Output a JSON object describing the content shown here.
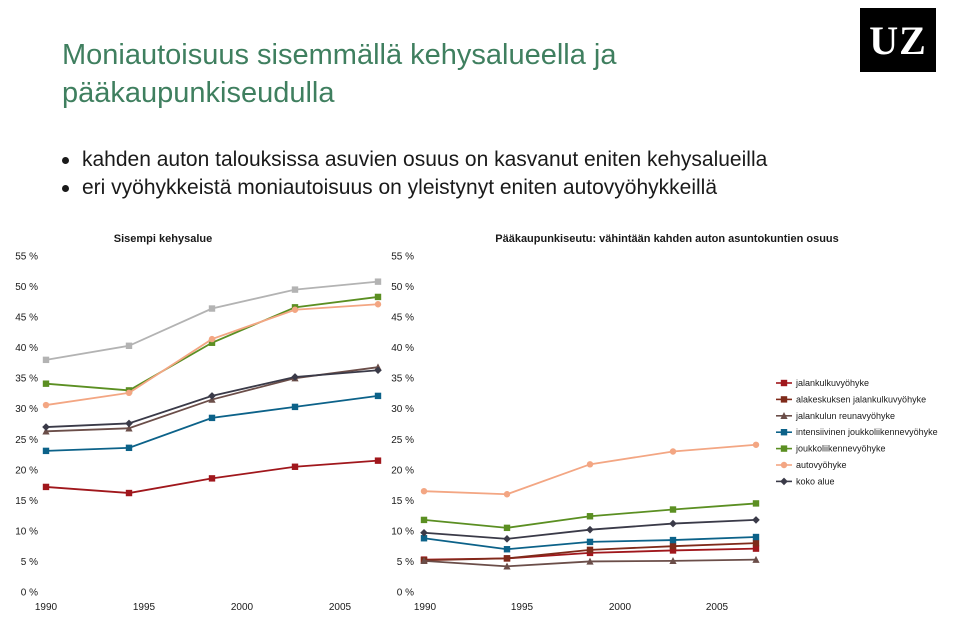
{
  "slide": {
    "title_line1": "Moniautoisuus sisemmällä kehysalueella ja",
    "title_line2": "pääkaupunkiseudulla",
    "bullets": [
      "kahden auton talouksissa asuvien osuus on kasvanut eniten kehysalueilla",
      "eri vyöhykkeistä moniautoisuus on yleistynyt eniten autovyöhykkeillä"
    ],
    "logo_text": "UZ"
  },
  "chart_data": [
    {
      "type": "line",
      "title": "Sisempi kehysalue",
      "x": [
        "1990",
        "1995",
        "2000",
        "2005",
        "2009"
      ],
      "xticks": [
        "1990",
        "1995",
        "2000",
        "2005"
      ],
      "yticks": [
        "0 %",
        "5 %",
        "10 %",
        "15 %",
        "20 %",
        "25 %",
        "30 %",
        "35 %",
        "40 %",
        "45 %",
        "50 %",
        "55 %"
      ],
      "ylim": [
        0,
        55
      ],
      "series": [
        {
          "name": "jalankulkuvyöhyke",
          "color": "#a0171c",
          "marker": "square",
          "values": [
            17.2,
            16.2,
            18.6,
            20.5,
            21.5
          ]
        },
        {
          "name": "jalankulun reunavyöhyke",
          "color": "#6b4e49",
          "marker": "triangle",
          "values": [
            26.3,
            26.8,
            31.5,
            35.0,
            36.8
          ]
        },
        {
          "name": "intensiivinen joukkoliikennevyöhyke",
          "color": "#0c6289",
          "marker": "square",
          "values": [
            23.1,
            23.6,
            28.5,
            30.3,
            32.1
          ]
        },
        {
          "name": "joukkoliikennevyöhyke",
          "color": "#5b8f22",
          "marker": "square",
          "values": [
            34.1,
            33.0,
            40.8,
            46.6,
            48.3
          ]
        },
        {
          "name": "autovyöhyke",
          "color": "#f3a683",
          "marker": "circle",
          "values": [
            30.6,
            32.6,
            41.4,
            46.2,
            47.1
          ]
        },
        {
          "name": "koko alue",
          "color": "#3a3a48",
          "marker": "diamond",
          "values": [
            27.0,
            27.6,
            32.1,
            35.2,
            36.3
          ]
        },
        {
          "name": "",
          "color": "#b3b3b3",
          "marker": "square",
          "values": [
            38.0,
            40.3,
            46.4,
            49.5,
            50.8
          ]
        }
      ]
    },
    {
      "type": "line",
      "title": "Pääkaupunkiseutu: vähintään kahden auton asuntokuntien osuus",
      "x": [
        "1990",
        "1995",
        "2000",
        "2005",
        "2009"
      ],
      "xticks": [
        "1990",
        "1995",
        "2000",
        "2005"
      ],
      "yticks": [
        "0 %",
        "5 %",
        "10 %",
        "15 %",
        "20 %",
        "25 %",
        "30 %",
        "35 %",
        "40 %",
        "45 %",
        "50 %",
        "55 %"
      ],
      "ylim": [
        0,
        55
      ],
      "series": [
        {
          "name": "jalankulkuvyöhyke",
          "color": "#a0171c",
          "marker": "square",
          "values": [
            5.3,
            5.5,
            6.4,
            6.8,
            7.1
          ]
        },
        {
          "name": "alakeskuksen jalankulkuvyöhyke",
          "color": "#7f2a1a",
          "marker": "square",
          "values": [
            5.2,
            5.5,
            6.9,
            7.5,
            8.0
          ]
        },
        {
          "name": "jalankulun reunavyöhyke",
          "color": "#6b4e49",
          "marker": "triangle",
          "values": [
            5.1,
            4.2,
            5.0,
            5.1,
            5.3
          ]
        },
        {
          "name": "intensiivinen joukkoliikennevyöhyke",
          "color": "#0c6289",
          "marker": "square",
          "values": [
            8.8,
            7.0,
            8.2,
            8.5,
            9.0
          ]
        },
        {
          "name": "joukkoliikennevyöhyke",
          "color": "#5b8f22",
          "marker": "square",
          "values": [
            11.8,
            10.5,
            12.4,
            13.5,
            14.5
          ]
        },
        {
          "name": "autovyöhyke",
          "color": "#f3a683",
          "marker": "circle",
          "values": [
            16.5,
            16.0,
            20.9,
            23.0,
            24.1
          ]
        },
        {
          "name": "koko alue",
          "color": "#3a3a48",
          "marker": "diamond",
          "values": [
            9.7,
            8.7,
            10.2,
            11.2,
            11.8
          ]
        }
      ],
      "legend": {
        "position": "right",
        "entries": [
          {
            "label": "jalankulkuvyöhyke",
            "color": "#a0171c",
            "marker": "square"
          },
          {
            "label": "alakeskuksen jalankulkuvyöhyke",
            "color": "#7f2a1a",
            "marker": "square"
          },
          {
            "label": "jalankulun reunavyöhyke",
            "color": "#6b4e49",
            "marker": "triangle"
          },
          {
            "label": "intensiivinen joukkoliikennevyöhyke",
            "color": "#0c6289",
            "marker": "square"
          },
          {
            "label": "joukkoliikennevyöhyke",
            "color": "#5b8f22",
            "marker": "square"
          },
          {
            "label": "autovyöhyke",
            "color": "#f3a683",
            "marker": "circle"
          },
          {
            "label": "koko alue",
            "color": "#3a3a48",
            "marker": "diamond"
          }
        ]
      }
    }
  ]
}
